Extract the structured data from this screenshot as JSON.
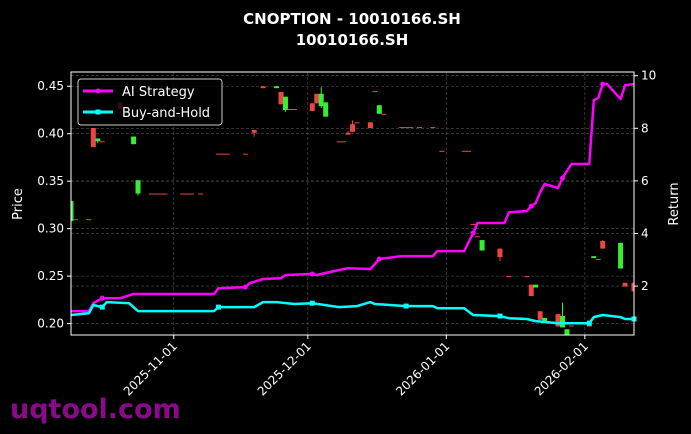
{
  "chart_data": {
    "type": "candlestick+line",
    "title": "CNOPTION - 10010166.SH",
    "subtitle": "10010166.SH",
    "ylabel": "Price",
    "y2label": "Return",
    "xlim": [
      "2025-10-09",
      "2026-02-12"
    ],
    "ylim": [
      0.188,
      0.465
    ],
    "y2lim": [
      0.14,
      10.14
    ],
    "xticks": [
      "2025-11-01",
      "2025-12-01",
      "2026-01-01",
      "2026-02-01"
    ],
    "yticks": [
      "0.20",
      "0.25",
      "0.30",
      "0.35",
      "0.40",
      "0.45"
    ],
    "y2ticks": [
      "2",
      "4",
      "6",
      "8",
      "10"
    ],
    "grid": true,
    "legend_position": "top-left",
    "colors": {
      "ai": "#ff00ff",
      "bh": "#00ffff",
      "up": "#33ee33",
      "down": "#ee4444",
      "watermark": "#8a0a8a"
    },
    "series": [
      {
        "name": "AI Strategy",
        "axis": "right",
        "points": [
          [
            "2025-10-09",
            1.05
          ],
          [
            "2025-10-13",
            1.05
          ],
          [
            "2025-10-14",
            1.35
          ],
          [
            "2025-10-16",
            1.54
          ],
          [
            "2025-10-20",
            1.54
          ],
          [
            "2025-10-23",
            1.7
          ],
          [
            "2025-11-10",
            1.7
          ],
          [
            "2025-11-11",
            1.92
          ],
          [
            "2025-11-17",
            1.96
          ],
          [
            "2025-11-18",
            2.11
          ],
          [
            "2025-11-21",
            2.27
          ],
          [
            "2025-11-25",
            2.3
          ],
          [
            "2025-11-26",
            2.42
          ],
          [
            "2025-12-02",
            2.46
          ],
          [
            "2025-12-03",
            2.42
          ],
          [
            "2025-12-08",
            2.61
          ],
          [
            "2025-12-10",
            2.68
          ],
          [
            "2025-12-15",
            2.65
          ],
          [
            "2025-12-17",
            3.03
          ],
          [
            "2025-12-22",
            3.14
          ],
          [
            "2025-12-29",
            3.14
          ],
          [
            "2025-12-30",
            3.33
          ],
          [
            "2026-01-05",
            3.33
          ],
          [
            "2026-01-07",
            4.02
          ],
          [
            "2026-01-08",
            4.4
          ],
          [
            "2026-01-14",
            4.4
          ],
          [
            "2026-01-15",
            4.81
          ],
          [
            "2026-01-19",
            4.85
          ],
          [
            "2026-01-20",
            5.04
          ],
          [
            "2026-01-21",
            5.16
          ],
          [
            "2026-01-22",
            5.57
          ],
          [
            "2026-01-23",
            5.88
          ],
          [
            "2026-01-26",
            5.73
          ],
          [
            "2026-01-27",
            6.11
          ],
          [
            "2026-01-29",
            6.64
          ],
          [
            "2026-02-02",
            6.64
          ],
          [
            "2026-02-03",
            9.07
          ],
          [
            "2026-02-04",
            9.15
          ],
          [
            "2026-02-05",
            9.68
          ],
          [
            "2026-02-06",
            9.68
          ],
          [
            "2026-02-09",
            9.11
          ],
          [
            "2026-02-10",
            9.64
          ],
          [
            "2026-02-12",
            9.68
          ]
        ]
      },
      {
        "name": "Buy-and-Hold",
        "axis": "right",
        "points": [
          [
            "2025-10-09",
            0.9
          ],
          [
            "2025-10-13",
            0.97
          ],
          [
            "2025-10-14",
            1.28
          ],
          [
            "2025-10-16",
            1.2
          ],
          [
            "2025-10-17",
            1.39
          ],
          [
            "2025-10-22",
            1.35
          ],
          [
            "2025-10-24",
            1.05
          ],
          [
            "2025-11-10",
            1.05
          ],
          [
            "2025-11-11",
            1.2
          ],
          [
            "2025-11-19",
            1.2
          ],
          [
            "2025-11-21",
            1.39
          ],
          [
            "2025-11-24",
            1.39
          ],
          [
            "2025-11-28",
            1.32
          ],
          [
            "2025-12-02",
            1.35
          ],
          [
            "2025-12-08",
            1.2
          ],
          [
            "2025-12-12",
            1.24
          ],
          [
            "2025-12-15",
            1.39
          ],
          [
            "2025-12-16",
            1.32
          ],
          [
            "2025-12-23",
            1.24
          ],
          [
            "2025-12-29",
            1.24
          ],
          [
            "2025-12-30",
            1.16
          ],
          [
            "2026-01-05",
            1.16
          ],
          [
            "2026-01-07",
            0.9
          ],
          [
            "2026-01-13",
            0.86
          ],
          [
            "2026-01-15",
            0.78
          ],
          [
            "2026-01-19",
            0.75
          ],
          [
            "2026-01-21",
            0.67
          ],
          [
            "2026-01-26",
            0.59
          ],
          [
            "2026-02-02",
            0.59
          ],
          [
            "2026-02-03",
            0.82
          ],
          [
            "2026-02-05",
            0.9
          ],
          [
            "2026-02-09",
            0.82
          ],
          [
            "2026-02-10",
            0.75
          ],
          [
            "2026-02-12",
            0.75
          ]
        ]
      }
    ],
    "candles": [
      {
        "d": "2025-10-09",
        "o": 0.308,
        "h": 0.329,
        "l": 0.308,
        "c": 0.329
      },
      {
        "d": "2025-10-10",
        "o": 0.31,
        "h": 0.31,
        "l": 0.31,
        "c": 0.31
      },
      {
        "d": "2025-10-13",
        "o": 0.31,
        "h": 0.31,
        "l": 0.31,
        "c": 0.31
      },
      {
        "d": "2025-10-14",
        "o": 0.406,
        "h": 0.406,
        "l": 0.386,
        "c": 0.386
      },
      {
        "d": "2025-10-15",
        "o": 0.392,
        "h": 0.395,
        "l": 0.39,
        "c": 0.395
      },
      {
        "d": "2025-10-16",
        "o": 0.392,
        "h": 0.392,
        "l": 0.392,
        "c": 0.392
      },
      {
        "d": "2025-10-20",
        "o": 0.433,
        "h": 0.433,
        "l": 0.426,
        "c": 0.426
      },
      {
        "d": "2025-10-23",
        "o": 0.389,
        "h": 0.397,
        "l": 0.389,
        "c": 0.397
      },
      {
        "d": "2025-10-24",
        "o": 0.337,
        "h": 0.351,
        "l": 0.335,
        "c": 0.351
      },
      {
        "d": "2025-10-27",
        "o": 0.337,
        "h": 0.337,
        "l": 0.337,
        "c": 0.337
      },
      {
        "d": "2025-10-28",
        "o": 0.337,
        "h": 0.337,
        "l": 0.337,
        "c": 0.337
      },
      {
        "d": "2025-10-29",
        "o": 0.337,
        "h": 0.337,
        "l": 0.337,
        "c": 0.337
      },
      {
        "d": "2025-10-30",
        "o": 0.337,
        "h": 0.337,
        "l": 0.337,
        "c": 0.337
      },
      {
        "d": "2025-11-03",
        "o": 0.337,
        "h": 0.337,
        "l": 0.337,
        "c": 0.337
      },
      {
        "d": "2025-11-04",
        "o": 0.337,
        "h": 0.337,
        "l": 0.337,
        "c": 0.337
      },
      {
        "d": "2025-11-05",
        "o": 0.337,
        "h": 0.337,
        "l": 0.337,
        "c": 0.337
      },
      {
        "d": "2025-11-07",
        "o": 0.337,
        "h": 0.337,
        "l": 0.337,
        "c": 0.337
      },
      {
        "d": "2025-11-11",
        "o": 0.379,
        "h": 0.379,
        "l": 0.379,
        "c": 0.379
      },
      {
        "d": "2025-11-12",
        "o": 0.379,
        "h": 0.379,
        "l": 0.379,
        "c": 0.379
      },
      {
        "d": "2025-11-13",
        "o": 0.379,
        "h": 0.379,
        "l": 0.379,
        "c": 0.379
      },
      {
        "d": "2025-11-17",
        "o": 0.379,
        "h": 0.379,
        "l": 0.379,
        "c": 0.379
      },
      {
        "d": "2025-11-19",
        "o": 0.404,
        "h": 0.404,
        "l": 0.397,
        "c": 0.401
      },
      {
        "d": "2025-11-21",
        "o": 0.45,
        "h": 0.45,
        "l": 0.448,
        "c": 0.448
      },
      {
        "d": "2025-11-24",
        "o": 0.448,
        "h": 0.45,
        "l": 0.448,
        "c": 0.45
      },
      {
        "d": "2025-11-25",
        "o": 0.444,
        "h": 0.444,
        "l": 0.431,
        "c": 0.431
      },
      {
        "d": "2025-11-26",
        "o": 0.425,
        "h": 0.439,
        "l": 0.423,
        "c": 0.439
      },
      {
        "d": "2025-11-27",
        "o": 0.426,
        "h": 0.426,
        "l": 0.426,
        "c": 0.426
      },
      {
        "d": "2025-11-28",
        "o": 0.426,
        "h": 0.426,
        "l": 0.426,
        "c": 0.426
      },
      {
        "d": "2025-12-02",
        "o": 0.432,
        "h": 0.432,
        "l": 0.424,
        "c": 0.424
      },
      {
        "d": "2025-12-03",
        "o": 0.442,
        "h": 0.442,
        "l": 0.432,
        "c": 0.432
      },
      {
        "d": "2025-12-04",
        "o": 0.429,
        "h": 0.449,
        "l": 0.427,
        "c": 0.442
      },
      {
        "d": "2025-12-05",
        "o": 0.418,
        "h": 0.433,
        "l": 0.418,
        "c": 0.433
      },
      {
        "d": "2025-12-08",
        "o": 0.392,
        "h": 0.392,
        "l": 0.392,
        "c": 0.392
      },
      {
        "d": "2025-12-09",
        "o": 0.392,
        "h": 0.392,
        "l": 0.392,
        "c": 0.392
      },
      {
        "d": "2025-12-10",
        "o": 0.401,
        "h": 0.403,
        "l": 0.399,
        "c": 0.399
      },
      {
        "d": "2025-12-11",
        "o": 0.41,
        "h": 0.414,
        "l": 0.402,
        "c": 0.402
      },
      {
        "d": "2025-12-12",
        "o": 0.412,
        "h": 0.412,
        "l": 0.412,
        "c": 0.412
      },
      {
        "d": "2025-12-15",
        "o": 0.412,
        "h": 0.412,
        "l": 0.406,
        "c": 0.406
      },
      {
        "d": "2025-12-16",
        "o": 0.445,
        "h": 0.445,
        "l": 0.444,
        "c": 0.444
      },
      {
        "d": "2025-12-17",
        "o": 0.421,
        "h": 0.43,
        "l": 0.421,
        "c": 0.43
      },
      {
        "d": "2025-12-18",
        "o": 0.421,
        "h": 0.421,
        "l": 0.421,
        "c": 0.421
      },
      {
        "d": "2025-12-22",
        "o": 0.407,
        "h": 0.407,
        "l": 0.407,
        "c": 0.407
      },
      {
        "d": "2025-12-23",
        "o": 0.407,
        "h": 0.407,
        "l": 0.407,
        "c": 0.407
      },
      {
        "d": "2025-12-24",
        "o": 0.407,
        "h": 0.407,
        "l": 0.407,
        "c": 0.407
      },
      {
        "d": "2025-12-26",
        "o": 0.407,
        "h": 0.407,
        "l": 0.407,
        "c": 0.407
      },
      {
        "d": "2025-12-29",
        "o": 0.407,
        "h": 0.407,
        "l": 0.407,
        "c": 0.407
      },
      {
        "d": "2025-12-31",
        "o": 0.382,
        "h": 0.382,
        "l": 0.382,
        "c": 0.382
      },
      {
        "d": "2026-01-05",
        "o": 0.382,
        "h": 0.382,
        "l": 0.382,
        "c": 0.382
      },
      {
        "d": "2026-01-06",
        "o": 0.382,
        "h": 0.382,
        "l": 0.382,
        "c": 0.382
      },
      {
        "d": "2026-01-07",
        "o": 0.305,
        "h": 0.305,
        "l": 0.305,
        "c": 0.305
      },
      {
        "d": "2026-01-08",
        "o": 0.292,
        "h": 0.292,
        "l": 0.292,
        "c": 0.292
      },
      {
        "d": "2026-01-09",
        "o": 0.277,
        "h": 0.288,
        "l": 0.277,
        "c": 0.288
      },
      {
        "d": "2026-01-13",
        "o": 0.279,
        "h": 0.279,
        "l": 0.266,
        "c": 0.27
      },
      {
        "d": "2026-01-15",
        "o": 0.25,
        "h": 0.25,
        "l": 0.25,
        "c": 0.25
      },
      {
        "d": "2026-01-19",
        "o": 0.25,
        "h": 0.25,
        "l": 0.25,
        "c": 0.25
      },
      {
        "d": "2026-01-20",
        "o": 0.241,
        "h": 0.241,
        "l": 0.229,
        "c": 0.229
      },
      {
        "d": "2026-01-21",
        "o": 0.238,
        "h": 0.241,
        "l": 0.238,
        "c": 0.241
      },
      {
        "d": "2026-01-22",
        "o": 0.213,
        "h": 0.213,
        "l": 0.202,
        "c": 0.204
      },
      {
        "d": "2026-01-23",
        "o": 0.202,
        "h": 0.206,
        "l": 0.202,
        "c": 0.206
      },
      {
        "d": "2026-01-26",
        "o": 0.21,
        "h": 0.21,
        "l": 0.197,
        "c": 0.197
      },
      {
        "d": "2026-01-27",
        "o": 0.196,
        "h": 0.222,
        "l": 0.196,
        "c": 0.208
      },
      {
        "d": "2026-01-28",
        "o": 0.186,
        "h": 0.194,
        "l": 0.186,
        "c": 0.194
      },
      {
        "d": "2026-01-29",
        "o": 0.198,
        "h": 0.198,
        "l": 0.198,
        "c": 0.198
      },
      {
        "d": "2026-02-02",
        "o": 0.198,
        "h": 0.198,
        "l": 0.198,
        "c": 0.198
      },
      {
        "d": "2026-02-03",
        "o": 0.269,
        "h": 0.271,
        "l": 0.269,
        "c": 0.271
      },
      {
        "d": "2026-02-04",
        "o": 0.268,
        "h": 0.268,
        "l": 0.267,
        "c": 0.267
      },
      {
        "d": "2026-02-05",
        "o": 0.287,
        "h": 0.288,
        "l": 0.279,
        "c": 0.279
      },
      {
        "d": "2026-02-09",
        "o": 0.258,
        "h": 0.285,
        "l": 0.258,
        "c": 0.285
      },
      {
        "d": "2026-02-10",
        "o": 0.243,
        "h": 0.243,
        "l": 0.239,
        "c": 0.239
      },
      {
        "d": "2026-02-12",
        "o": 0.243,
        "h": 0.243,
        "l": 0.234,
        "c": 0.234
      }
    ]
  },
  "watermark": "uqtool.com"
}
